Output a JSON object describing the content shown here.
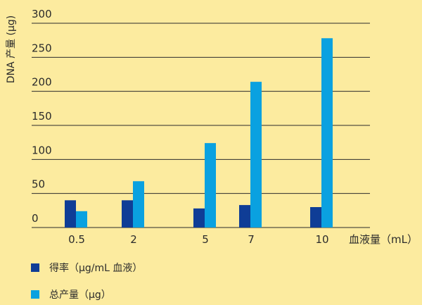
{
  "chart_data": {
    "type": "bar",
    "title": "",
    "xlabel": "血液量（mL）",
    "ylabel": "DNA 产量 (µg)",
    "categories": [
      "0.5",
      "2",
      "5",
      "7",
      "10"
    ],
    "x": [
      0.5,
      2,
      5,
      7,
      10
    ],
    "y_ticks": [
      0,
      50,
      100,
      150,
      200,
      250,
      300
    ],
    "ylim": [
      0,
      300
    ],
    "grid": true,
    "legend_position": "bottom-left",
    "series": [
      {
        "name": "得率（µg/mL 血液）",
        "values": [
          40,
          40,
          28,
          33,
          30
        ]
      },
      {
        "name": "总产量（µg）",
        "values": [
          24,
          68,
          124,
          214,
          278
        ]
      }
    ]
  },
  "colors": {
    "background": "#FCEB9F",
    "series_1": "#0F3D96",
    "series_2": "#0AA1E0",
    "gridline": "#2B2B2B",
    "text": "#2B2B2B"
  }
}
